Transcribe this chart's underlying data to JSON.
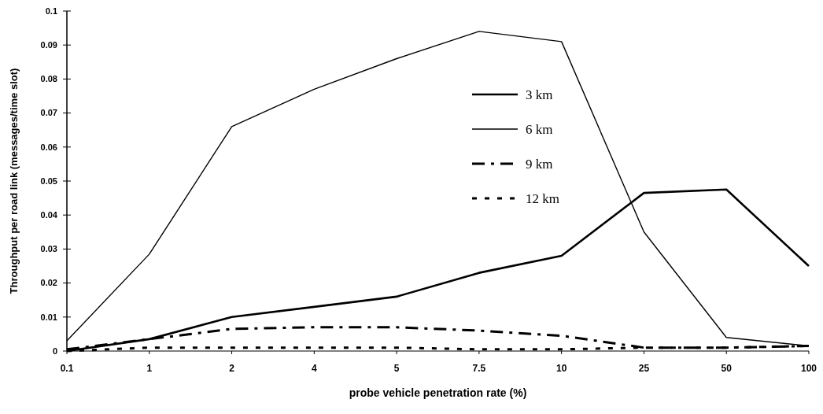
{
  "chart_data": {
    "type": "line",
    "xlabel": "probe vehicle penetration rate (%)",
    "ylabel": "Throughput per road link (messages/time slot)",
    "categories": [
      "0.1",
      "1",
      "2",
      "4",
      "5",
      "7.5",
      "10",
      "25",
      "50",
      "100"
    ],
    "series": [
      {
        "name": "3 km",
        "color": "#000000",
        "line_style": "solid",
        "values": [
          0,
          0.0035,
          0.01,
          0.013,
          0.016,
          0.023,
          0.028,
          0.0465,
          0.0475,
          0.025
        ]
      },
      {
        "name": "6 km",
        "color": "#000000",
        "line_style": "solid",
        "values": [
          0.003,
          0.0285,
          0.066,
          0.077,
          0.086,
          0.094,
          0.091,
          0.035,
          0.004,
          0.0015
        ]
      },
      {
        "name": "9 km",
        "color": "#000000",
        "line_style": "dashdot",
        "values": [
          0.0005,
          0.0035,
          0.0065,
          0.007,
          0.007,
          0.006,
          0.0045,
          0.001,
          0.001,
          0.0015
        ]
      },
      {
        "name": "12 km",
        "color": "#000000",
        "line_style": "dotted",
        "values": [
          0,
          0.001,
          0.001,
          0.001,
          0.001,
          0.0005,
          0.0005,
          0.001,
          0.001,
          0.0015
        ]
      }
    ],
    "ylim": [
      0,
      0.1
    ],
    "yticks": [
      0,
      0.01,
      0.02,
      0.03,
      0.04,
      0.05,
      0.06,
      0.07,
      0.08,
      0.09,
      0.1
    ],
    "grid": false,
    "legend": "top right",
    "marker": "none"
  }
}
